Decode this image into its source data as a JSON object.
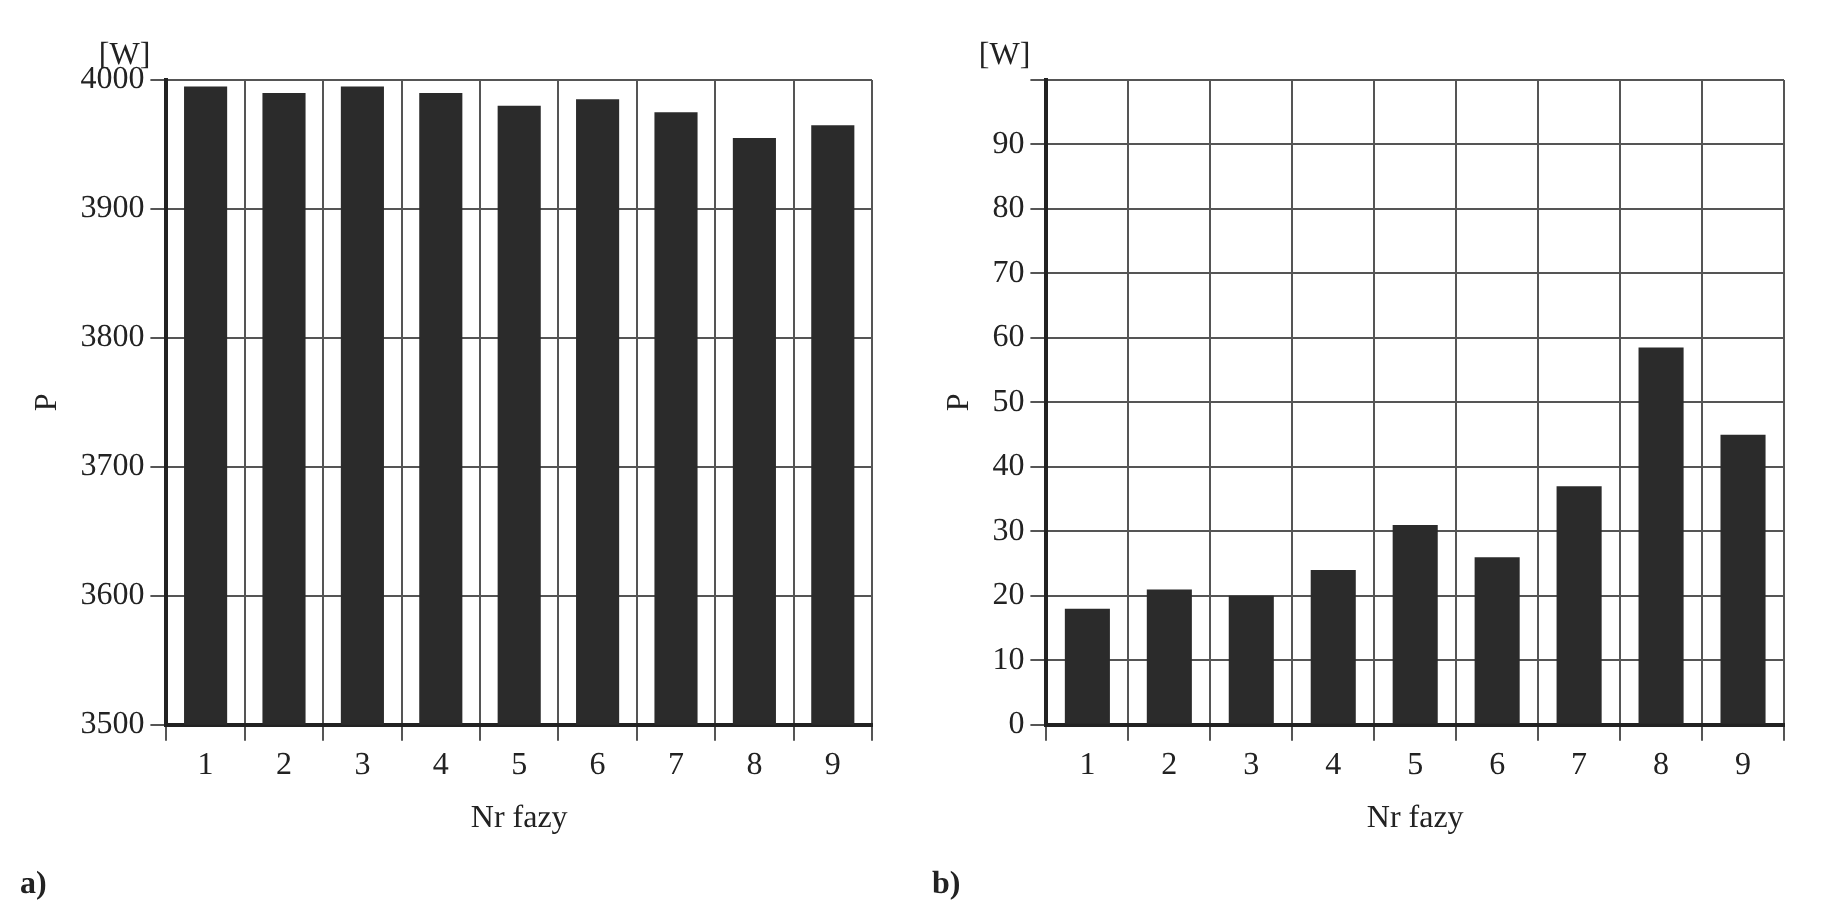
{
  "chart_data": [
    {
      "type": "bar",
      "title": "a)",
      "xlabel": "Nr fazy",
      "ylabel": "P",
      "annotations": [
        "[W]"
      ],
      "categories": [
        "1",
        "2",
        "3",
        "4",
        "5",
        "6",
        "7",
        "8",
        "9"
      ],
      "values": [
        3995,
        3990,
        3995,
        3990,
        3980,
        3985,
        3975,
        3955,
        3965
      ],
      "color": "#2b2b2b",
      "ylim": [
        3500,
        4000
      ],
      "yticks": [
        3500,
        3600,
        3700,
        3800,
        3900,
        4000
      ],
      "grid": true
    },
    {
      "type": "bar",
      "title": "b)",
      "xlabel": "Nr fazy",
      "ylabel": "P",
      "annotations": [
        "[W]"
      ],
      "categories": [
        "1",
        "2",
        "3",
        "4",
        "5",
        "6",
        "7",
        "8",
        "9"
      ],
      "values": [
        18,
        21,
        20,
        24,
        31,
        26,
        37,
        58.5,
        45
      ],
      "color": "#2b2b2b",
      "ylim": [
        0,
        100
      ],
      "yticks": [
        0,
        10,
        20,
        30,
        40,
        50,
        60,
        70,
        80,
        90,
        {
          "value": 100,
          "label": null
        }
      ],
      "grid": true
    }
  ]
}
